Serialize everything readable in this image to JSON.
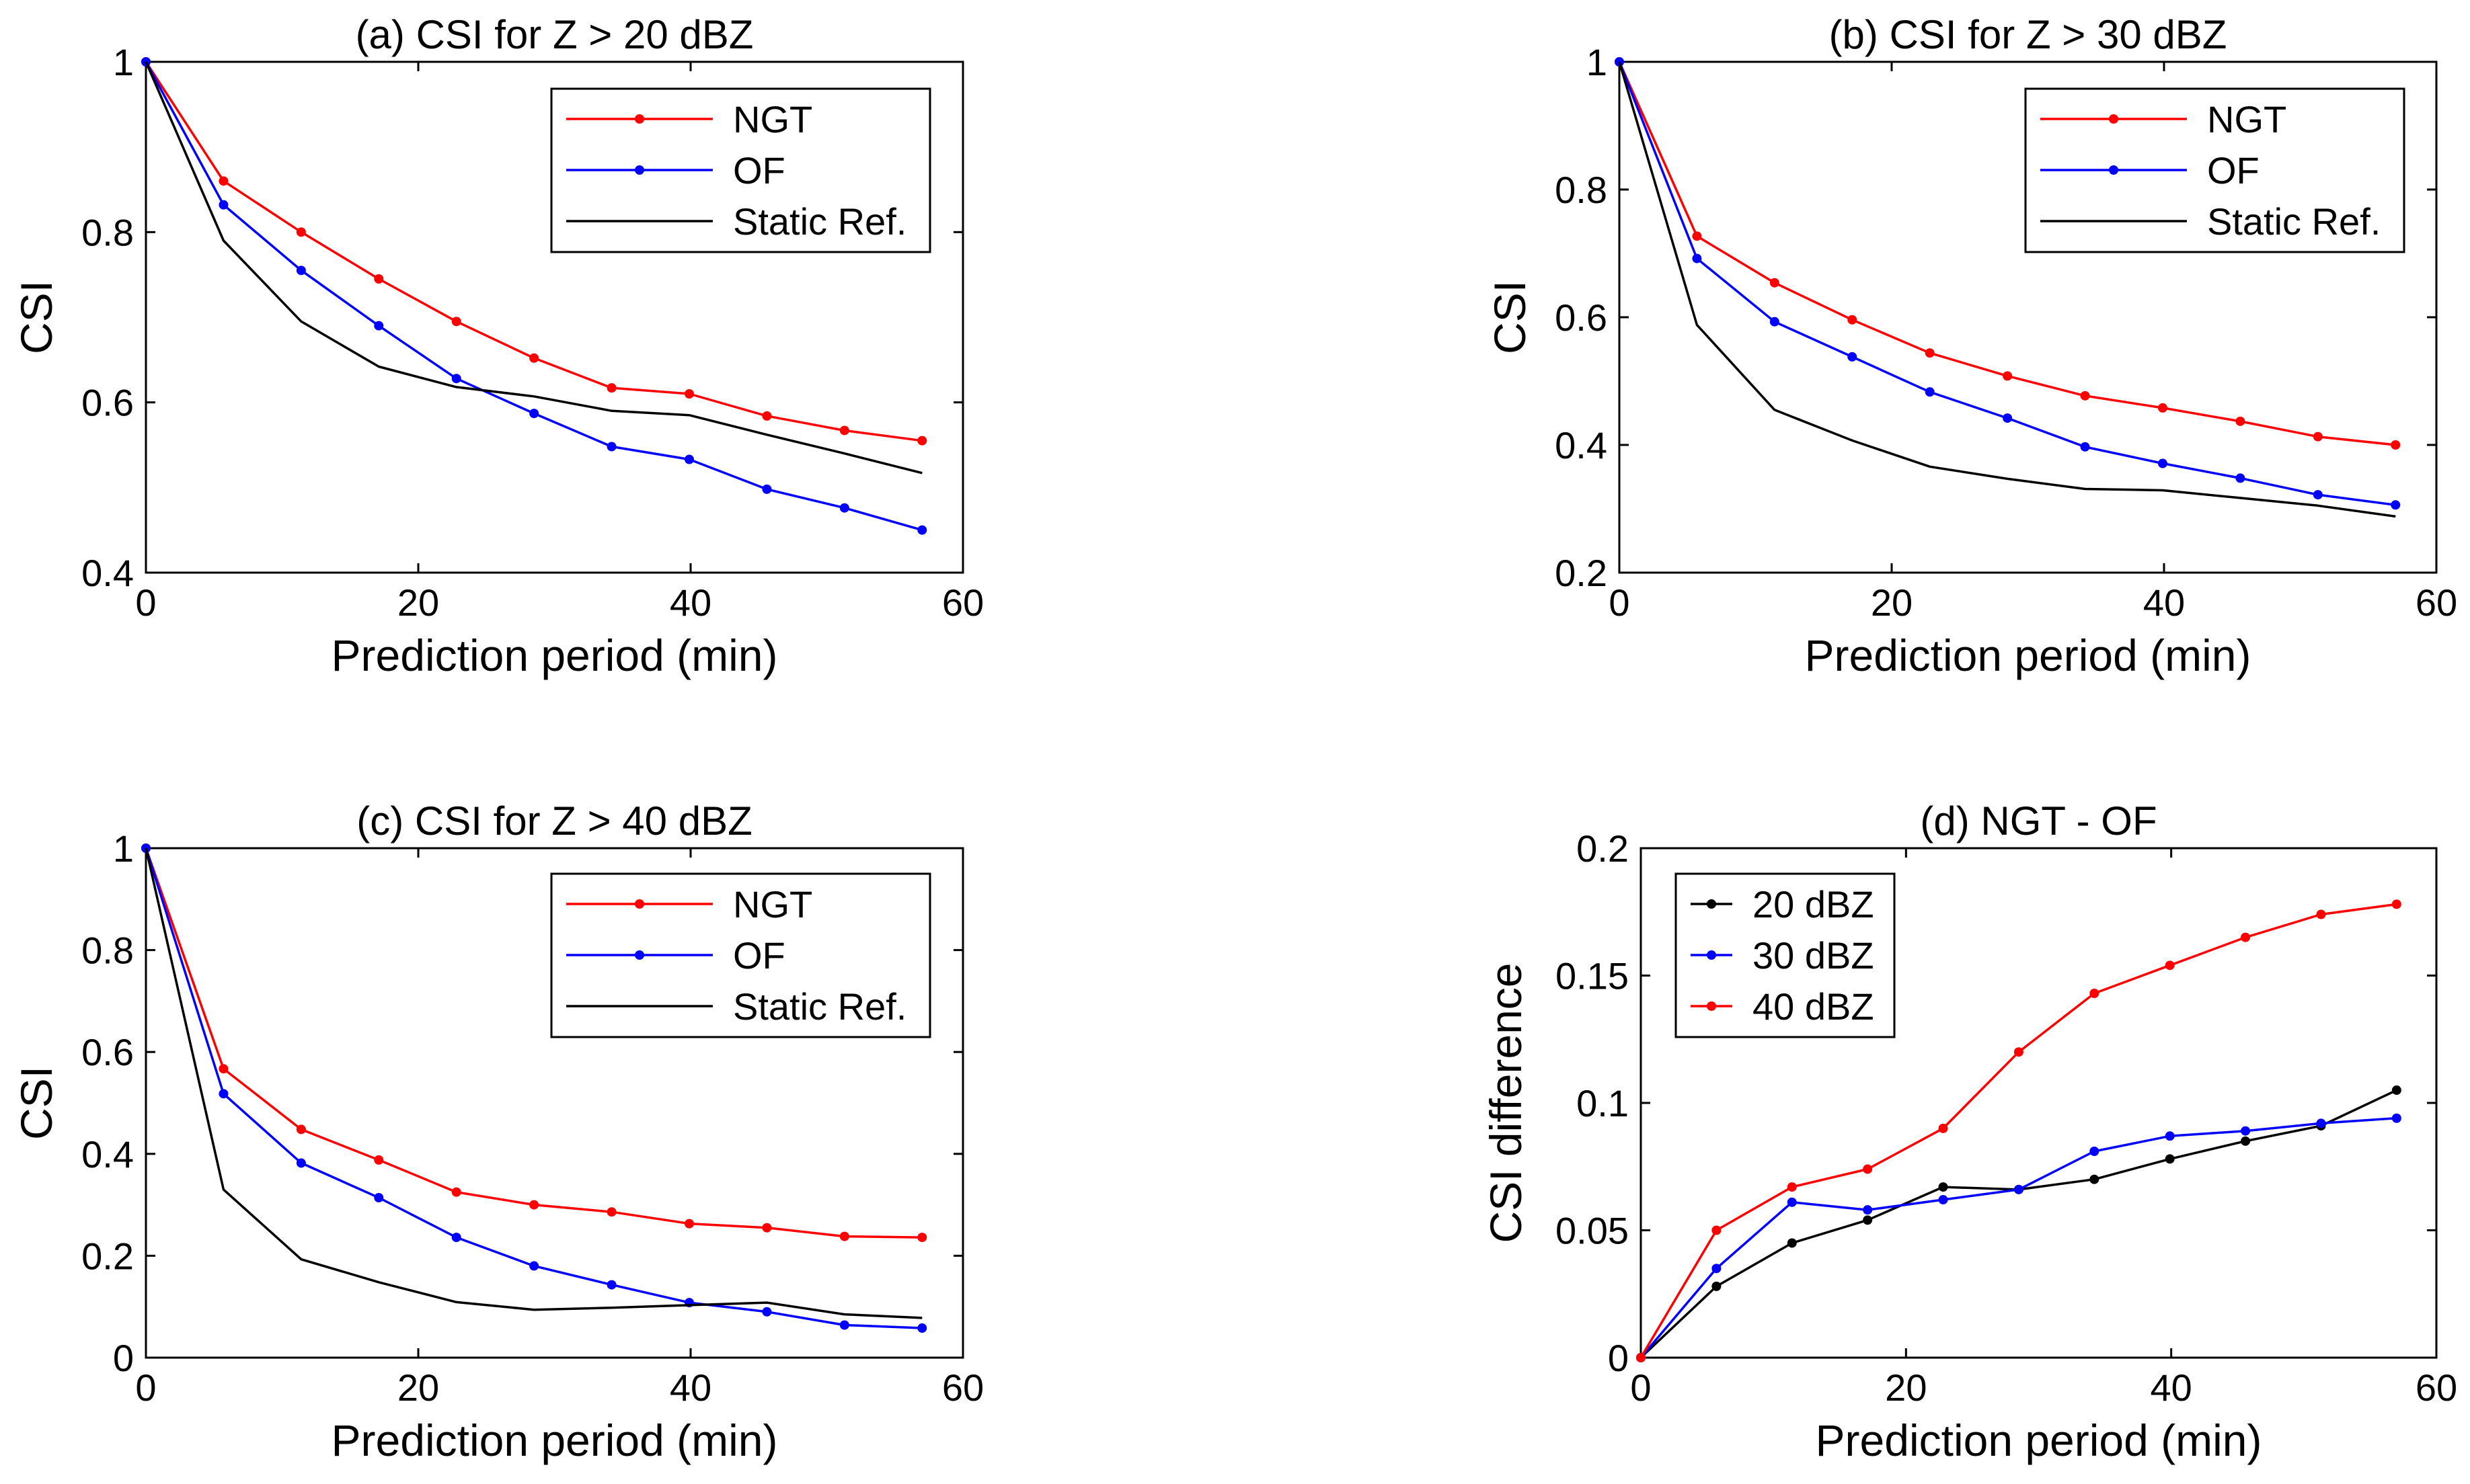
{
  "chart_data": [
    {
      "id": "a",
      "type": "line",
      "title": "(a) CSI for Z > 20 dBZ",
      "xlabel": "Prediction period (min)",
      "ylabel": "CSI",
      "xlim": [
        0,
        60
      ],
      "ylim": [
        0.4,
        1
      ],
      "xticks": [
        0,
        20,
        40,
        60
      ],
      "yticks": [
        0.4,
        0.6,
        0.8,
        1
      ],
      "xtick_labels": [
        "0",
        "20",
        "40",
        "60"
      ],
      "ytick_labels": [
        "0.4",
        "0.6",
        "0.8",
        "1"
      ],
      "legend_position": "top-right",
      "series": [
        {
          "name": "NGT",
          "color": "#ff0000",
          "markers": true,
          "x": [
            0,
            5.7,
            11.4,
            17.1,
            22.8,
            28.5,
            34.2,
            39.9,
            45.6,
            51.3,
            57
          ],
          "y": [
            1,
            0.86,
            0.8,
            0.745,
            0.695,
            0.652,
            0.617,
            0.61,
            0.584,
            0.567,
            0.555
          ]
        },
        {
          "name": "OF",
          "color": "#0000ff",
          "markers": true,
          "x": [
            0,
            5.7,
            11.4,
            17.1,
            22.8,
            28.5,
            34.2,
            39.9,
            45.6,
            51.3,
            57
          ],
          "y": [
            1,
            0.832,
            0.755,
            0.69,
            0.628,
            0.587,
            0.548,
            0.533,
            0.498,
            0.476,
            0.45
          ]
        },
        {
          "name": "Static Ref.",
          "color": "#000000",
          "markers": false,
          "x": [
            0,
            5.7,
            11.4,
            17.1,
            22.8,
            28.5,
            34.2,
            39.9,
            45.6,
            51.3,
            57
          ],
          "y": [
            1,
            0.79,
            0.695,
            0.642,
            0.618,
            0.607,
            0.59,
            0.585,
            0.562,
            0.54,
            0.517
          ]
        }
      ]
    },
    {
      "id": "b",
      "type": "line",
      "title": "(b) CSI for Z > 30 dBZ",
      "xlabel": "Prediction period (min)",
      "ylabel": "CSI",
      "xlim": [
        0,
        60
      ],
      "ylim": [
        0.2,
        1
      ],
      "xticks": [
        0,
        20,
        40,
        60
      ],
      "yticks": [
        0.2,
        0.4,
        0.6,
        0.8,
        1
      ],
      "xtick_labels": [
        "0",
        "20",
        "40",
        "60"
      ],
      "ytick_labels": [
        "0.2",
        "0.4",
        "0.6",
        "0.8",
        "1"
      ],
      "legend_position": "top-right",
      "series": [
        {
          "name": "NGT",
          "color": "#ff0000",
          "markers": true,
          "x": [
            0,
            5.7,
            11.4,
            17.1,
            22.8,
            28.5,
            34.2,
            39.9,
            45.6,
            51.3,
            57
          ],
          "y": [
            1,
            0.727,
            0.654,
            0.596,
            0.544,
            0.508,
            0.477,
            0.458,
            0.437,
            0.413,
            0.4
          ]
        },
        {
          "name": "OF",
          "color": "#0000ff",
          "markers": true,
          "x": [
            0,
            5.7,
            11.4,
            17.1,
            22.8,
            28.5,
            34.2,
            39.9,
            45.6,
            51.3,
            57
          ],
          "y": [
            1,
            0.692,
            0.593,
            0.538,
            0.483,
            0.442,
            0.397,
            0.371,
            0.348,
            0.322,
            0.306
          ]
        },
        {
          "name": "Static Ref.",
          "color": "#000000",
          "markers": false,
          "x": [
            0,
            5.7,
            11.4,
            17.1,
            22.8,
            28.5,
            34.2,
            39.9,
            45.6,
            51.3,
            57
          ],
          "y": [
            1,
            0.588,
            0.455,
            0.407,
            0.366,
            0.347,
            0.331,
            0.329,
            0.317,
            0.305,
            0.288
          ]
        }
      ]
    },
    {
      "id": "c",
      "type": "line",
      "title": "(c) CSI for Z > 40 dBZ",
      "xlabel": "Prediction period (min)",
      "ylabel": "CSI",
      "xlim": [
        0,
        60
      ],
      "ylim": [
        0,
        1
      ],
      "xticks": [
        0,
        20,
        40,
        60
      ],
      "yticks": [
        0,
        0.2,
        0.4,
        0.6,
        0.8,
        1
      ],
      "xtick_labels": [
        "0",
        "20",
        "40",
        "60"
      ],
      "ytick_labels": [
        "0",
        "0.2",
        "0.4",
        "0.6",
        "0.8",
        "1"
      ],
      "legend_position": "top-right",
      "series": [
        {
          "name": "NGT",
          "color": "#ff0000",
          "markers": true,
          "x": [
            0,
            5.7,
            11.4,
            17.1,
            22.8,
            28.5,
            34.2,
            39.9,
            45.6,
            51.3,
            57
          ],
          "y": [
            1,
            0.567,
            0.448,
            0.388,
            0.325,
            0.3,
            0.286,
            0.263,
            0.255,
            0.238,
            0.236
          ]
        },
        {
          "name": "OF",
          "color": "#0000ff",
          "markers": true,
          "x": [
            0,
            5.7,
            11.4,
            17.1,
            22.8,
            28.5,
            34.2,
            39.9,
            45.6,
            51.3,
            57
          ],
          "y": [
            1,
            0.518,
            0.382,
            0.314,
            0.236,
            0.18,
            0.143,
            0.108,
            0.09,
            0.064,
            0.058
          ]
        },
        {
          "name": "Static Ref.",
          "color": "#000000",
          "markers": false,
          "x": [
            0,
            5.7,
            11.4,
            17.1,
            22.8,
            28.5,
            34.2,
            39.9,
            45.6,
            51.3,
            57
          ],
          "y": [
            1,
            0.33,
            0.193,
            0.148,
            0.109,
            0.094,
            0.098,
            0.103,
            0.108,
            0.085,
            0.078
          ]
        }
      ]
    },
    {
      "id": "d",
      "type": "line",
      "title": "(d) NGT - OF",
      "xlabel": "Prediction period (min)",
      "ylabel": "CSI difference",
      "xlim": [
        0,
        60
      ],
      "ylim": [
        0,
        0.2
      ],
      "xticks": [
        0,
        20,
        40,
        60
      ],
      "yticks": [
        0,
        0.05,
        0.1,
        0.15,
        0.2
      ],
      "xtick_labels": [
        "0",
        "20",
        "40",
        "60"
      ],
      "ytick_labels": [
        "0",
        "0.05",
        "0.1",
        "0.15",
        "0.2"
      ],
      "legend_position": "top-left",
      "series": [
        {
          "name": "20 dBZ",
          "color": "#000000",
          "markers": true,
          "x": [
            0,
            5.7,
            11.4,
            17.1,
            22.8,
            28.5,
            34.2,
            39.9,
            45.6,
            51.3,
            57
          ],
          "y": [
            0,
            0.028,
            0.045,
            0.054,
            0.067,
            0.066,
            0.07,
            0.078,
            0.085,
            0.091,
            0.105
          ]
        },
        {
          "name": "30 dBZ",
          "color": "#0000ff",
          "markers": true,
          "x": [
            0,
            5.7,
            11.4,
            17.1,
            22.8,
            28.5,
            34.2,
            39.9,
            45.6,
            51.3,
            57
          ],
          "y": [
            0,
            0.035,
            0.061,
            0.058,
            0.062,
            0.066,
            0.081,
            0.087,
            0.089,
            0.092,
            0.094
          ]
        },
        {
          "name": "40 dBZ",
          "color": "#ff0000",
          "markers": true,
          "x": [
            0,
            5.7,
            11.4,
            17.1,
            22.8,
            28.5,
            34.2,
            39.9,
            45.6,
            51.3,
            57
          ],
          "y": [
            0,
            0.05,
            0.067,
            0.074,
            0.09,
            0.12,
            0.143,
            0.154,
            0.165,
            0.174,
            0.178
          ]
        }
      ]
    }
  ]
}
